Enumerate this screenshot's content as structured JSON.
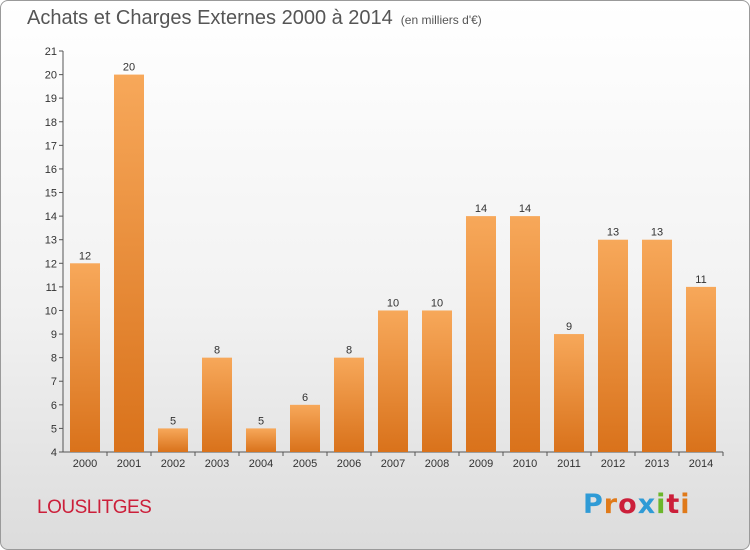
{
  "header": {
    "title": "Achats et Charges Externes 2000 à 2014",
    "subtitle": "(en milliers d'€)"
  },
  "footer": {
    "place": "LOUSLITGES",
    "logo": "Proxiti",
    "logo_colors": [
      "#2f9bd6",
      "#e07a1a",
      "#cc1f3a",
      "#2f9bd6",
      "#6cb62b",
      "#cc1f3a",
      "#e07a1a"
    ]
  },
  "chart_data": {
    "type": "bar",
    "categories": [
      "2000",
      "2001",
      "2002",
      "2003",
      "2004",
      "2005",
      "2006",
      "2007",
      "2008",
      "2009",
      "2010",
      "2011",
      "2012",
      "2013",
      "2014"
    ],
    "values": [
      12,
      20,
      5,
      8,
      5,
      6,
      8,
      10,
      10,
      14,
      14,
      9,
      13,
      13,
      11
    ],
    "ylim": [
      4,
      21
    ],
    "yticks": [
      4,
      5,
      6,
      7,
      8,
      9,
      10,
      11,
      12,
      13,
      14,
      15,
      16,
      17,
      18,
      19,
      20,
      21
    ],
    "grid": false,
    "bar_color_top": "#f7a85a",
    "bar_color_bottom": "#d9721b"
  }
}
